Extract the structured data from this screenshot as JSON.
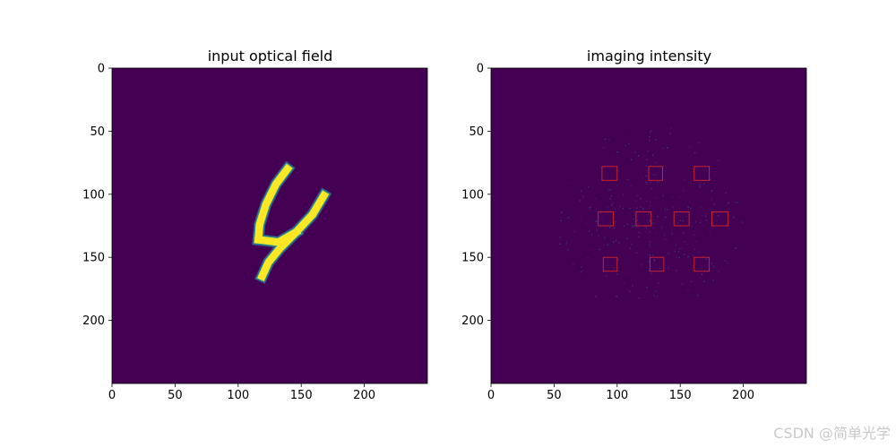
{
  "watermark": "CSDN @简单光学",
  "colors": {
    "background": "#440154",
    "digit": "#fde725",
    "digit_mid": "#3b528b",
    "digit_teal": "#21918c",
    "box_stroke": "#d62728",
    "speckle": "#3b528b"
  },
  "chart_data": [
    {
      "type": "heatmap",
      "title": "input optical field",
      "xlabel": "",
      "ylabel": "",
      "xlim": [
        0,
        250
      ],
      "ylim": [
        250,
        0
      ],
      "xticks": [
        0,
        50,
        100,
        150,
        200
      ],
      "yticks": [
        0,
        50,
        100,
        150,
        200
      ],
      "colormap": "viridis",
      "grid": false,
      "content": "handwritten digit 4 (MNIST)",
      "digit_strokes": [
        {
          "points": [
            [
              139,
              80
            ],
            [
              130,
              92
            ],
            [
              122,
              108
            ],
            [
              117,
              124
            ],
            [
              116,
              136
            ]
          ],
          "width": 6
        },
        {
          "points": [
            [
              116,
              136
            ],
            [
              132,
              138
            ],
            [
              146,
              130
            ]
          ],
          "width": 6
        },
        {
          "points": [
            [
              168,
              101
            ],
            [
              159,
              116
            ],
            [
              146,
              130
            ],
            [
              133,
              143
            ],
            [
              124,
              154
            ],
            [
              119,
              165
            ]
          ],
          "width": 6
        }
      ]
    },
    {
      "type": "heatmap",
      "title": "imaging intensity",
      "xlabel": "",
      "ylabel": "",
      "xlim": [
        0,
        250
      ],
      "ylim": [
        250,
        0
      ],
      "xticks": [
        0,
        50,
        100,
        150,
        200
      ],
      "yticks": [
        0,
        50,
        100,
        150,
        200
      ],
      "colormap": "viridis",
      "grid": false,
      "detector_boxes": [
        {
          "x": 88,
          "y": 78,
          "w": 12,
          "h": 11
        },
        {
          "x": 125,
          "y": 78,
          "w": 11,
          "h": 11
        },
        {
          "x": 161,
          "y": 78,
          "w": 12,
          "h": 11
        },
        {
          "x": 85,
          "y": 114,
          "w": 12,
          "h": 11
        },
        {
          "x": 115,
          "y": 114,
          "w": 12,
          "h": 11
        },
        {
          "x": 145,
          "y": 114,
          "w": 12,
          "h": 11
        },
        {
          "x": 175,
          "y": 114,
          "w": 13,
          "h": 11
        },
        {
          "x": 89,
          "y": 150,
          "w": 11,
          "h": 11
        },
        {
          "x": 126,
          "y": 150,
          "w": 11,
          "h": 11
        },
        {
          "x": 161,
          "y": 150,
          "w": 12,
          "h": 11
        }
      ]
    }
  ]
}
